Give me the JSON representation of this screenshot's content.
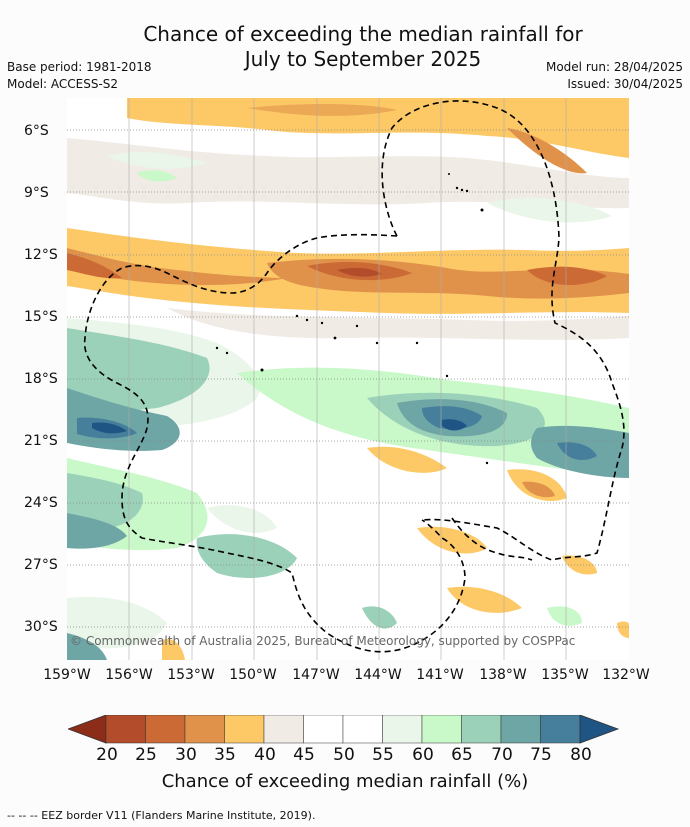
{
  "title_line1": "Chance of exceeding the median rainfall for",
  "title_line2": "July to September 2025",
  "base_period": "Base period: 1981-2018",
  "model": "Model: ACCESS-S2",
  "model_run": "Model run: 28/04/2025",
  "issued": "Issued: 30/04/2025",
  "copyright": "© Commonwealth of Australia 2025, Bureau of Meteorology, supported by COSPPac",
  "lat_labels": [
    "6°S",
    "9°S",
    "12°S",
    "15°S",
    "18°S",
    "21°S",
    "24°S",
    "27°S",
    "30°S"
  ],
  "lon_labels": [
    "159°W",
    "156°W",
    "153°W",
    "150°W",
    "147°W",
    "144°W",
    "141°W",
    "138°W",
    "135°W",
    "132°W"
  ],
  "colorbar": {
    "ticks": [
      "20",
      "25",
      "30",
      "35",
      "40",
      "45",
      "50",
      "55",
      "60",
      "65",
      "70",
      "75",
      "80"
    ],
    "colors": [
      "#8c2d1a",
      "#b24c2a",
      "#cc6a35",
      "#e0924a",
      "#fdc967",
      "#f1ebe6",
      "#ffffff",
      "#ffffff",
      "#e9f6e9",
      "#c9f8c9",
      "#9bd1b8",
      "#6ea5a5",
      "#467f9b",
      "#1f5585"
    ],
    "title": "Chance of exceeding median rainfall (%)"
  },
  "footnote": "--  --  -- EEZ border V11 (Flanders Marine Institute, 2019)."
}
